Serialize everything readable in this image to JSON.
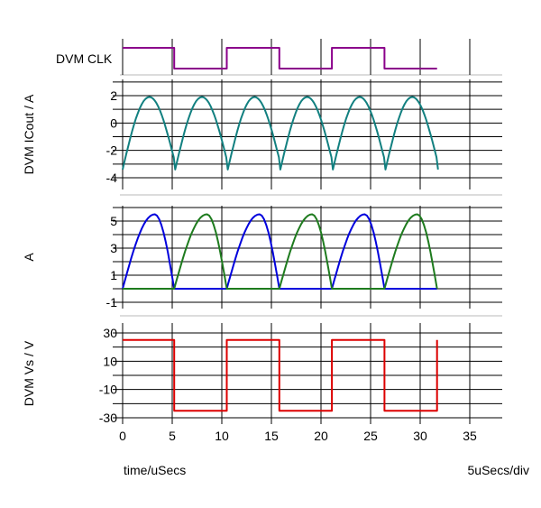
{
  "chart_data": [
    {
      "type": "line",
      "ylabel": "DVM CLK",
      "series": [
        {
          "color": "#8b008b",
          "x": [
            0,
            5.2,
            5.2,
            10.5,
            10.5,
            15.8,
            15.8,
            21.1,
            21.1,
            26.4,
            26.4,
            31.7
          ],
          "y": [
            1,
            1,
            0,
            0,
            1,
            1,
            0,
            0,
            1,
            1,
            0,
            0
          ]
        }
      ]
    },
    {
      "type": "line",
      "ylabel": "DVM ICout / A",
      "ylim": [
        -4.6,
        2.8
      ],
      "yticks": [
        "2",
        "0",
        "-2",
        "-4"
      ],
      "ytick_values": [
        2,
        0,
        -2,
        -4
      ],
      "series": [
        {
          "color": "#128080",
          "x": [
            0,
            2.7,
            5.15,
            5.3,
            8.0,
            10.45,
            10.6,
            13.3,
            15.75,
            15.9,
            18.6,
            21.05,
            21.2,
            23.9,
            26.35,
            26.5,
            29.2,
            31.65,
            31.8
          ],
          "y": [
            -3.4,
            1.9,
            -2.5,
            -3.4,
            1.9,
            -2.5,
            -3.4,
            1.9,
            -2.5,
            -3.4,
            1.9,
            -2.5,
            -3.4,
            1.9,
            -2.5,
            -3.4,
            1.9,
            -2.5,
            -3.4
          ]
        }
      ]
    },
    {
      "type": "line",
      "ylabel": "A",
      "ylim": [
        -1.8,
        6.6
      ],
      "yticks": [
        "5",
        "3",
        "1",
        "-1"
      ],
      "ytick_values": [
        5,
        3,
        1,
        -1
      ],
      "series": [
        {
          "color": "#0000dd",
          "pulses": [
            [
              0,
              5.2
            ],
            [
              10.5,
              15.8
            ],
            [
              21.1,
              26.4
            ]
          ],
          "peak": 5.5,
          "peak_frac": 0.62
        },
        {
          "color": "#1e7b1e",
          "pulses": [
            [
              5.2,
              10.5
            ],
            [
              15.8,
              21.1
            ],
            [
              26.4,
              31.7
            ]
          ],
          "peak": 5.5,
          "peak_frac": 0.62
        }
      ]
    },
    {
      "type": "line",
      "ylabel": "DVM Vs / V",
      "ylim": [
        -34,
        32
      ],
      "yticks": [
        "30",
        "10",
        "-10",
        "-30"
      ],
      "ytick_values": [
        30,
        10,
        -10,
        -30
      ],
      "series": [
        {
          "color": "#dd0000",
          "x": [
            0,
            5.2,
            5.2,
            10.5,
            10.5,
            15.8,
            15.8,
            21.1,
            21.1,
            26.4,
            26.4,
            31.7,
            31.7
          ],
          "y": [
            25,
            25,
            -25,
            -25,
            25,
            25,
            -25,
            -25,
            25,
            25,
            -25,
            -25,
            25
          ]
        }
      ]
    }
  ],
  "xaxis": {
    "xlim": [
      0,
      38
    ],
    "ticks": [
      0,
      5,
      10,
      15,
      20,
      25,
      30,
      35
    ],
    "tick_labels": [
      "0",
      "5",
      "10",
      "15",
      "20",
      "25",
      "30",
      "35"
    ],
    "label": "time/uSecs",
    "scale_label": "5uSecs/div"
  }
}
